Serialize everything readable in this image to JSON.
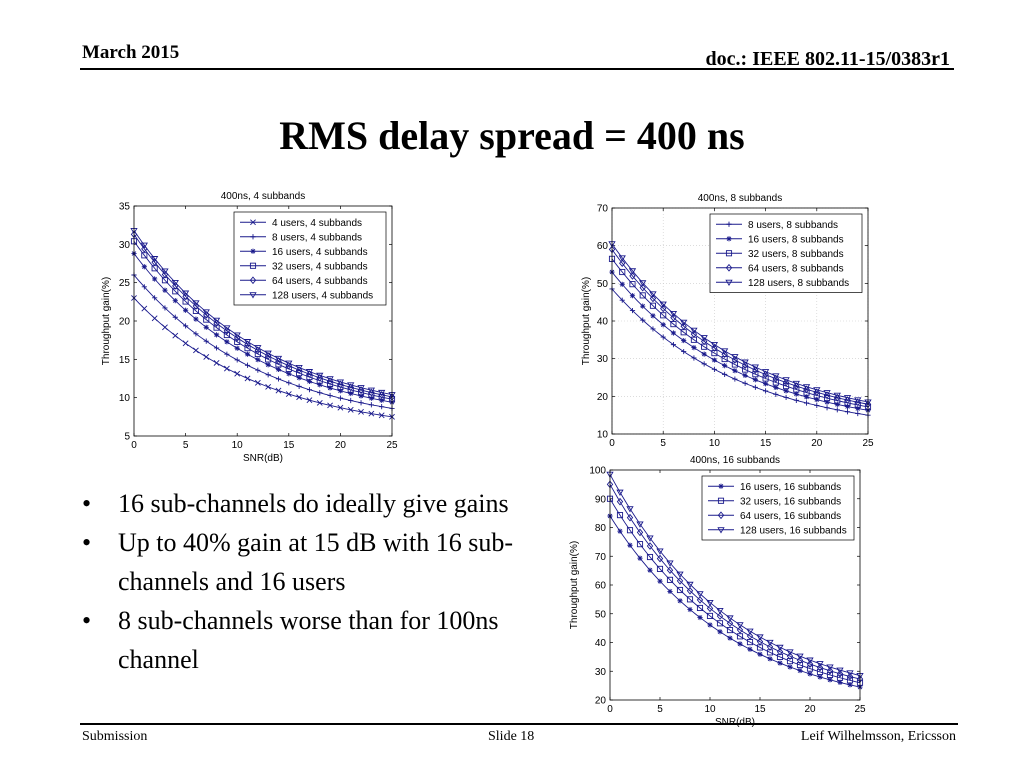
{
  "header": {
    "date": "March 2015",
    "doc": "doc.: IEEE 802.11-15/0383r1"
  },
  "slide_title": "RMS delay spread = 400 ns",
  "bullets": [
    "16 sub-channels do ideally give gains",
    "Up to 40% gain at 15 dB with 16 sub-channels and 16 users",
    "8 sub-channels worse than for 100ns channel"
  ],
  "footer": {
    "left": "Submission",
    "center": "Slide 18",
    "right": "Leif Wilhelmsson, Ericsson"
  },
  "chart_data": [
    {
      "type": "line",
      "title": "400ns, 4 subbands",
      "xlabel": "SNR(dB)",
      "ylabel": "Throughput gain(%)",
      "xlim": [
        0,
        25
      ],
      "ylim": [
        5,
        35
      ],
      "xticks": [
        0,
        5,
        10,
        15,
        20,
        25
      ],
      "yticks": [
        5,
        10,
        15,
        20,
        25,
        30,
        35
      ],
      "grid": false,
      "legend_position": "top-right",
      "x": [
        0,
        25
      ],
      "series": [
        {
          "name": "4 users, 4 subbands",
          "marker": "x",
          "values": [
            23,
            7.5
          ]
        },
        {
          "name": "8 users, 4 subbands",
          "marker": "+",
          "values": [
            26,
            8.6
          ]
        },
        {
          "name": "16 users, 4 subbands",
          "marker": "*",
          "values": [
            28.8,
            9.4
          ]
        },
        {
          "name": "32 users, 4 subbands",
          "marker": "s",
          "values": [
            30.4,
            9.8
          ]
        },
        {
          "name": "64 users, 4 subbands",
          "marker": "d",
          "values": [
            31.3,
            10.1
          ]
        },
        {
          "name": "128 users, 4 subbands",
          "marker": "v",
          "values": [
            31.8,
            10.4
          ]
        }
      ]
    },
    {
      "type": "line",
      "title": "400ns, 8 subbands",
      "xlabel": "",
      "ylabel": "Throughput gain(%)",
      "xlim": [
        0,
        25
      ],
      "ylim": [
        10,
        70
      ],
      "xticks": [
        0,
        5,
        10,
        15,
        20,
        25
      ],
      "yticks": [
        10,
        20,
        30,
        40,
        50,
        60,
        70
      ],
      "grid": true,
      "legend_position": "top-right",
      "x": [
        0,
        25
      ],
      "series": [
        {
          "name": "8 users, 8 subbands",
          "marker": "+",
          "values": [
            48.5,
            15
          ]
        },
        {
          "name": "16 users, 8 subbands",
          "marker": "*",
          "values": [
            53,
            16.3
          ]
        },
        {
          "name": "32 users, 8 subbands",
          "marker": "s",
          "values": [
            56.5,
            17.2
          ]
        },
        {
          "name": "64 users, 8 subbands",
          "marker": "d",
          "values": [
            59,
            17.9
          ]
        },
        {
          "name": "128 users, 8 subbands",
          "marker": "v",
          "values": [
            60.5,
            18.5
          ]
        }
      ]
    },
    {
      "type": "line",
      "title": "400ns, 16 subbands",
      "xlabel": "SNR(dB)",
      "ylabel": "Throughput gain(%)",
      "xlim": [
        0,
        25
      ],
      "ylim": [
        20,
        100
      ],
      "xticks": [
        0,
        5,
        10,
        15,
        20,
        25
      ],
      "yticks": [
        20,
        30,
        40,
        50,
        60,
        70,
        80,
        90,
        100
      ],
      "grid": false,
      "legend_position": "top-right",
      "x": [
        0,
        25
      ],
      "series": [
        {
          "name": "16 users, 16 subbands",
          "marker": "*",
          "values": [
            84,
            24.5
          ]
        },
        {
          "name": "32 users, 16 subbands",
          "marker": "s",
          "values": [
            90,
            26
          ]
        },
        {
          "name": "64 users, 16 subbands",
          "marker": "d",
          "values": [
            95,
            27.3
          ]
        },
        {
          "name": "128 users, 16 subbands",
          "marker": "v",
          "values": [
            98.5,
            28.5
          ]
        }
      ]
    }
  ]
}
